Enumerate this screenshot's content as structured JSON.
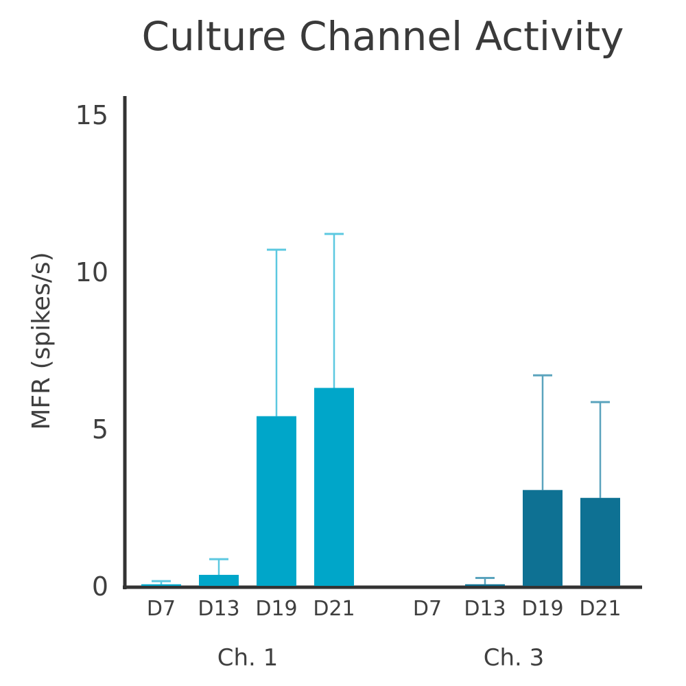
{
  "chart_data": {
    "type": "bar",
    "title": "Culture Channel Activity",
    "ylabel": "MFR (spikes/s)",
    "xlabel": "",
    "ylim": [
      0,
      15
    ],
    "yticks": [
      0,
      5,
      10,
      15
    ],
    "grid": false,
    "groups": [
      {
        "name": "Ch. 1",
        "color": "#00a6c9",
        "error_color": "#5cc8e0",
        "categories": [
          "D7",
          "D13",
          "D19",
          "D21"
        ],
        "values": [
          0.05,
          0.35,
          5.4,
          6.3
        ],
        "errors": [
          0.1,
          0.5,
          5.3,
          4.9
        ]
      },
      {
        "name": "Ch. 3",
        "color": "#0e7193",
        "error_color": "#5aa3bd",
        "categories": [
          "D7",
          "D13",
          "D19",
          "D21"
        ],
        "values": [
          0.0,
          0.05,
          3.05,
          2.8
        ],
        "errors": [
          0.0,
          0.2,
          3.65,
          3.05
        ]
      }
    ]
  }
}
